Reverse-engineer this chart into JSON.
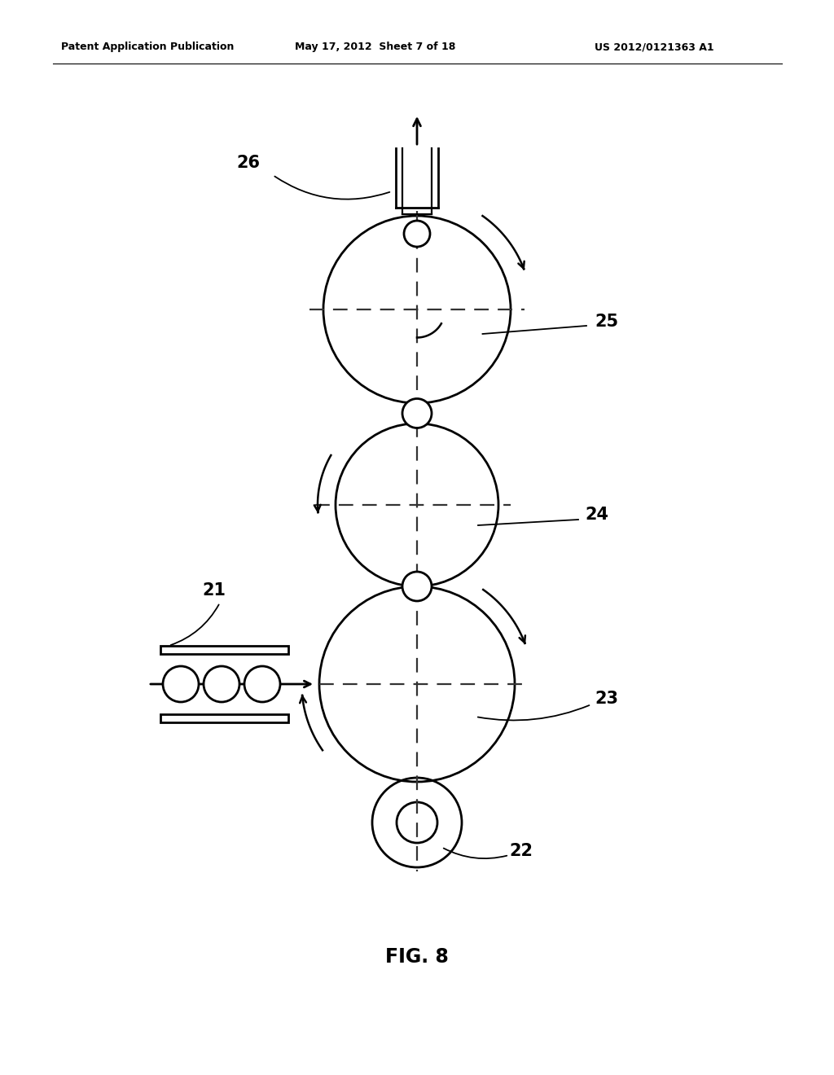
{
  "header_left": "Patent Application Publication",
  "header_center": "May 17, 2012  Sheet 7 of 18",
  "header_right": "US 2012/0121363 A1",
  "figure_label": "FIG. 8",
  "bg_color": "#ffffff",
  "line_color": "#000000"
}
